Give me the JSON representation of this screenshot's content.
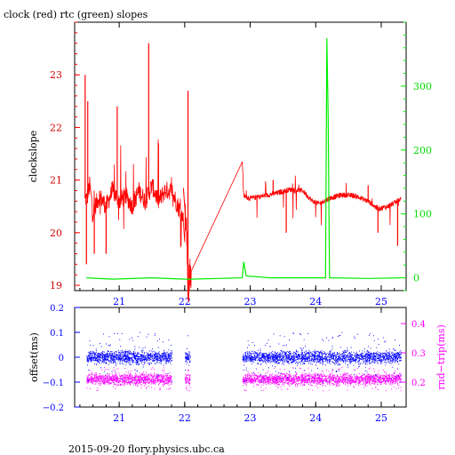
{
  "title": "clock (red) rtc (green) slopes",
  "footer": "2015-09-20 flory.physics.ubc.ca",
  "colors": {
    "clock": "#ff0000",
    "rtc": "#00ee00",
    "offset": "#0000ff",
    "roundtrip": "#ff00ff",
    "axis": "#000000"
  },
  "chart_data": [
    {
      "type": "line",
      "title": "clock (red) rtc (green) slopes",
      "xlabel": "",
      "ylabel": "clockslope",
      "xlim": [
        20.32,
        25.38
      ],
      "ylim": [
        18.9,
        24.0
      ],
      "y2lim": [
        -20,
        400
      ],
      "x_ticks": [
        21,
        22,
        23,
        24,
        25
      ],
      "y_ticks": [
        19,
        20,
        21,
        22,
        23
      ],
      "y2_ticks": [
        0,
        100,
        200,
        300
      ],
      "grid": false,
      "series": [
        {
          "name": "clock",
          "axis": "left",
          "points": [
            [
              20.5,
              20.6
            ],
            [
              20.55,
              20.9
            ],
            [
              20.6,
              20.4
            ],
            [
              20.7,
              20.7
            ],
            [
              20.8,
              20.5
            ],
            [
              20.9,
              20.8
            ],
            [
              21.0,
              20.6
            ],
            [
              21.1,
              20.7
            ],
            [
              21.2,
              20.5
            ],
            [
              21.3,
              20.8
            ],
            [
              21.4,
              20.6
            ],
            [
              21.5,
              20.9
            ],
            [
              21.6,
              20.6
            ],
            [
              21.7,
              20.8
            ],
            [
              21.8,
              20.8
            ],
            [
              21.9,
              20.5
            ],
            [
              22.0,
              20.2
            ],
            [
              22.02,
              20.3
            ],
            [
              22.05,
              19.0
            ],
            [
              22.1,
              19.2
            ],
            [
              22.88,
              21.35
            ],
            [
              22.9,
              20.7
            ],
            [
              23.0,
              20.65
            ],
            [
              23.2,
              20.7
            ],
            [
              23.4,
              20.75
            ],
            [
              23.6,
              20.82
            ],
            [
              23.8,
              20.8
            ],
            [
              23.95,
              20.6
            ],
            [
              24.05,
              20.55
            ],
            [
              24.2,
              20.65
            ],
            [
              24.4,
              20.72
            ],
            [
              24.6,
              20.7
            ],
            [
              24.8,
              20.6
            ],
            [
              24.95,
              20.45
            ],
            [
              25.1,
              20.5
            ],
            [
              25.25,
              20.6
            ],
            [
              25.3,
              20.65
            ]
          ],
          "spikes_max": [
            [
              20.48,
              23.0
            ],
            [
              20.52,
              22.5
            ],
            [
              21.45,
              23.6
            ],
            [
              22.05,
              22.7
            ],
            [
              20.97,
              22.4
            ],
            [
              21.6,
              21.7
            ],
            [
              23.35,
              21.0
            ],
            [
              24.8,
              20.9
            ]
          ],
          "spikes_min": [
            [
              20.5,
              19.4
            ],
            [
              20.62,
              19.6
            ],
            [
              20.8,
              19.6
            ],
            [
              22.05,
              19.0
            ],
            [
              23.55,
              20.0
            ],
            [
              24.95,
              20.0
            ],
            [
              25.25,
              19.75
            ]
          ]
        },
        {
          "name": "rtc",
          "axis": "right",
          "points": [
            [
              20.5,
              0
            ],
            [
              20.9,
              -2
            ],
            [
              21.5,
              0
            ],
            [
              22.0,
              -2
            ],
            [
              22.1,
              -2
            ],
            [
              22.88,
              0
            ],
            [
              22.9,
              25
            ],
            [
              22.94,
              3
            ],
            [
              23.3,
              0
            ],
            [
              24.15,
              0
            ],
            [
              24.17,
              375
            ],
            [
              24.19,
              250
            ],
            [
              24.21,
              0
            ],
            [
              24.8,
              -1
            ],
            [
              25.3,
              0
            ]
          ]
        }
      ]
    },
    {
      "type": "scatter",
      "xlabel": "",
      "ylabel": "offset(ms)",
      "y2label": "rnd−trip(ms)",
      "xlim": [
        20.32,
        25.38
      ],
      "ylim": [
        -0.2,
        0.2
      ],
      "y2lim": [
        0.115,
        0.455
      ],
      "x_ticks": [
        21,
        22,
        23,
        24,
        25
      ],
      "y_ticks": [
        -0.2,
        -0.1,
        0,
        0.1,
        0.2
      ],
      "y_tick_labels": [
        "−0.2",
        "−0.1",
        "0",
        "0.1",
        "0.2"
      ],
      "y2_ticks": [
        0.2,
        0.3,
        0.4
      ],
      "y2_tick_labels": [
        "0.2",
        "0.3",
        "0.4"
      ],
      "grid": false,
      "series": [
        {
          "name": "offset",
          "axis": "left",
          "x_ranges": [
            [
              20.5,
              21.8
            ],
            [
              22.0,
              22.08
            ],
            [
              22.88,
              25.3
            ]
          ],
          "center": 0.0,
          "spread": 0.02,
          "outlier_spread": 0.1
        },
        {
          "name": "roundtrip",
          "axis": "right",
          "x_ranges": [
            [
              20.5,
              21.8
            ],
            [
              22.0,
              22.08
            ],
            [
              22.88,
              25.3
            ]
          ],
          "center": 0.21,
          "spread": 0.015,
          "outlier_spread": 0.04
        }
      ]
    }
  ]
}
